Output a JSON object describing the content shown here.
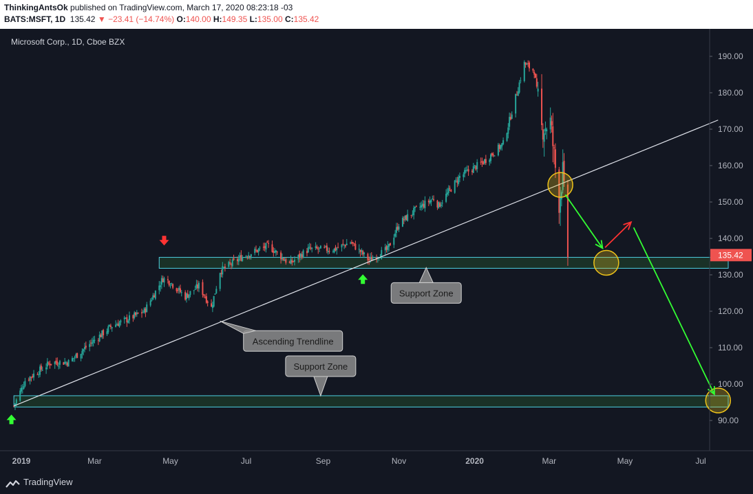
{
  "header": {
    "author": "ThinkingAntsOk",
    "published_text": "published on TradingView.com, March 17, 2020 08:23:18 -03",
    "symbol": "BATS:MSFT, 1D",
    "last": "135.42",
    "change": "−23.41 (−14.74%)",
    "o_label": "O:",
    "o_value": "140.00",
    "h_label": "H:",
    "h_value": "149.35",
    "l_label": "L:",
    "l_value": "135.00",
    "c_label": "C:",
    "c_value": "135.42"
  },
  "footer": {
    "brand": "TradingView"
  },
  "colors": {
    "background": "#131722",
    "up_candle": "#26a69a",
    "down_candle": "#ef5350",
    "zone": "#4dd0e1",
    "zone_fill": "#1e3b2a",
    "arrow_green": "#33ff33",
    "arrow_red": "#ff3333",
    "circle": "#f0c419"
  },
  "chart_data": {
    "type": "candlestick",
    "title": "Microsoft Corp., 1D, Cboe BZX",
    "x_ticks": [
      "2019",
      "Mar",
      "May",
      "Jul",
      "Sep",
      "Nov",
      "2020",
      "Mar",
      "May",
      "Jul"
    ],
    "y_ticks": [
      "190.00",
      "180.00",
      "170.00",
      "160.00",
      "150.00",
      "140.00",
      "130.00",
      "120.00",
      "110.00",
      "100.00",
      "90.00"
    ],
    "ylim": [
      83,
      194
    ],
    "last_price_label": "135.42",
    "price_path": [
      [
        "2018-12-26",
        94
      ],
      [
        "2019-01-04",
        101
      ],
      [
        "2019-01-25",
        106
      ],
      [
        "2019-02-08",
        106
      ],
      [
        "2019-02-25",
        111
      ],
      [
        "2019-03-15",
        116
      ],
      [
        "2019-03-29",
        118
      ],
      [
        "2019-04-10",
        120
      ],
      [
        "2019-04-25",
        129
      ],
      [
        "2019-05-01",
        128
      ],
      [
        "2019-05-13",
        124
      ],
      [
        "2019-05-24",
        127
      ],
      [
        "2019-06-03",
        121
      ],
      [
        "2019-06-10",
        131
      ],
      [
        "2019-06-28",
        135
      ],
      [
        "2019-07-19",
        138
      ],
      [
        "2019-08-05",
        133
      ],
      [
        "2019-08-20",
        137
      ],
      [
        "2019-09-10",
        137
      ],
      [
        "2019-09-23",
        139
      ],
      [
        "2019-10-08",
        134
      ],
      [
        "2019-10-23",
        137
      ],
      [
        "2019-11-01",
        144
      ],
      [
        "2019-11-15",
        148
      ],
      [
        "2019-11-29",
        151
      ],
      [
        "2019-12-03",
        149
      ],
      [
        "2019-12-20",
        157
      ],
      [
        "2020-01-08",
        161
      ],
      [
        "2020-01-24",
        166
      ],
      [
        "2020-02-04",
        180
      ],
      [
        "2020-02-10",
        188
      ],
      [
        "2020-02-18",
        186
      ],
      [
        "2020-02-24",
        170
      ],
      [
        "2020-03-02",
        172
      ],
      [
        "2020-03-09",
        150
      ],
      [
        "2020-03-12",
        158
      ],
      [
        "2020-03-16",
        135.42
      ]
    ],
    "horizontal_zones": [
      {
        "name": "upper",
        "from": "2019-04-22",
        "to_right_edge": true,
        "low": 131.8,
        "high": 134.8
      },
      {
        "name": "lower",
        "from": "2018-12-26",
        "to_right_edge": true,
        "low": 93.7,
        "high": 96.8
      }
    ],
    "trendline": {
      "p1": [
        "2018-12-26",
        94
      ],
      "p2": [
        "2020-07-15",
        172.5
      ]
    },
    "projection_arrows": [
      {
        "color": "green",
        "from": [
          "2020-03-14",
          152
        ],
        "to": [
          "2020-04-13",
          137.3
        ]
      },
      {
        "color": "red",
        "from": [
          "2020-04-15",
          137.5
        ],
        "to": [
          "2020-05-06",
          144.5
        ]
      },
      {
        "color": "green",
        "from": [
          "2020-05-08",
          143
        ],
        "to": [
          "2020-07-12",
          97.2
        ]
      }
    ],
    "circles": [
      {
        "center": [
          "2020-03-10",
          154.7
        ]
      },
      {
        "center": [
          "2020-04-16",
          133.3
        ]
      },
      {
        "center": [
          "2020-07-15",
          95.5
        ]
      }
    ],
    "markers": [
      {
        "type": "down-arrow",
        "color": "red",
        "at": [
          "2019-04-26",
          139.2
        ]
      },
      {
        "type": "up-arrow",
        "color": "green",
        "at": [
          "2019-10-03",
          129
        ]
      },
      {
        "type": "up-arrow",
        "color": "green",
        "at": [
          "2018-12-24",
          90.5
        ]
      }
    ],
    "annotations": [
      {
        "text": "Support Zone",
        "anchor": [
          "2019-11-23",
          132
        ]
      },
      {
        "text": "Ascending Trendline",
        "anchor": [
          "2019-06-10",
          117.3
        ]
      },
      {
        "text": "Support Zone",
        "anchor": [
          "2019-08-30",
          96.8
        ]
      }
    ]
  }
}
